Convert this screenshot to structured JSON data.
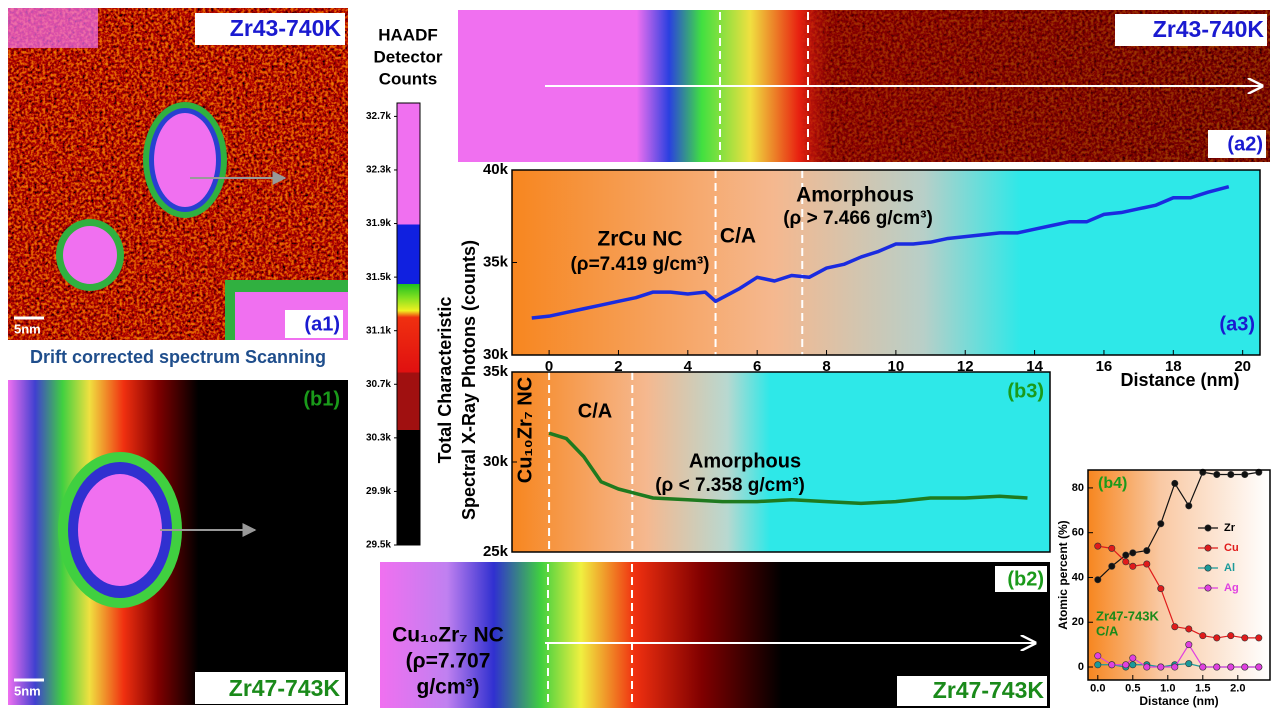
{
  "panels": {
    "a1": {
      "title": "Zr43-740K",
      "tag": "(a1)",
      "scale": "5nm"
    },
    "b1": {
      "title": "Zr47-743K",
      "tag": "(b1)",
      "scale": "5nm"
    },
    "a2": {
      "title": "Zr43-740K",
      "tag": "(a2)"
    },
    "b2": {
      "title": "Zr47-743K",
      "tag": "(b2)",
      "note": [
        "Cu₁₀Zr₇ NC",
        "(ρ=7.707",
        "g/cm³)"
      ]
    }
  },
  "caption": "Drift corrected spectrum Scanning",
  "chart_data": [
    {
      "type": "colorbar",
      "title": [
        "HAADF",
        "Detector",
        "Counts"
      ],
      "ylim": [
        29500,
        32800
      ],
      "yticks": [
        {
          "value": 29500,
          "label": "29.5k"
        },
        {
          "value": 29900,
          "label": "29.9k"
        },
        {
          "value": 30300,
          "label": "30.3k"
        },
        {
          "value": 30700,
          "label": "30.7k"
        },
        {
          "value": 31100,
          "label": "31.1k"
        },
        {
          "value": 31500,
          "label": "31.5k"
        },
        {
          "value": 31900,
          "label": "31.9k"
        },
        {
          "value": 32300,
          "label": "32.3k"
        },
        {
          "value": 32700,
          "label": "32.7k"
        }
      ]
    },
    {
      "type": "line",
      "tag": "(a3)",
      "xlabel": "Distance (nm)",
      "ylabel": [
        "Total Characteristic",
        "Spectral X-Ray Photons (counts)"
      ],
      "xlim": [
        -1.07,
        20.5
      ],
      "xticks": [
        0,
        2,
        4,
        6,
        8,
        10,
        12,
        14,
        16,
        18,
        20
      ],
      "ylim": [
        30000,
        40000
      ],
      "yticks": [
        {
          "value": 30000,
          "label": "30k"
        },
        {
          "value": 35000,
          "label": "35k"
        },
        {
          "value": 40000,
          "label": "40k"
        }
      ],
      "boundaries": [
        4.8,
        7.3
      ],
      "annotations": [
        "ZrCu NC",
        "(ρ=7.419 g/cm³)",
        "C/A",
        "Amorphous",
        "(ρ > 7.466 g/cm³)"
      ],
      "x": [
        -0.5,
        0,
        0.5,
        1,
        1.5,
        2,
        2.5,
        3,
        3.5,
        4,
        4.5,
        4.8,
        5.5,
        6,
        6.5,
        7,
        7.5,
        8,
        8.5,
        9,
        9.5,
        10,
        10.5,
        11,
        11.5,
        12,
        12.5,
        13,
        13.5,
        14,
        14.5,
        15,
        15.5,
        16,
        16.5,
        17,
        17.5,
        18,
        18.5,
        19,
        19.6
      ],
      "series": [
        {
          "color": "#1a2be0",
          "values": [
            32000,
            32100,
            32300,
            32500,
            32700,
            32900,
            33100,
            33400,
            33400,
            33300,
            33400,
            32900,
            33600,
            34200,
            34000,
            34300,
            34200,
            34700,
            34900,
            35300,
            35600,
            36000,
            36000,
            36100,
            36300,
            36400,
            36500,
            36600,
            36600,
            36800,
            37000,
            37200,
            37200,
            37600,
            37700,
            37900,
            38100,
            38500,
            38500,
            38800,
            39100
          ]
        }
      ]
    },
    {
      "type": "line",
      "tag": "(b3)",
      "xlim": [
        -1.07,
        14.45
      ],
      "ylim": [
        25000,
        35000
      ],
      "yticks": [
        {
          "value": 25000,
          "label": "25k"
        },
        {
          "value": 30000,
          "label": "30k"
        },
        {
          "value": 35000,
          "label": "35k"
        }
      ],
      "boundaries": [
        0,
        2.4
      ],
      "annotations": [
        "Cu₁₀Zr₇ NC",
        "C/A",
        "Amorphous",
        "(ρ < 7.358 g/cm³)"
      ],
      "x": [
        0,
        0.5,
        1,
        1.5,
        2,
        2.4,
        3,
        4,
        5,
        6,
        7,
        8,
        9,
        10,
        11,
        12,
        13,
        13.8
      ],
      "series": [
        {
          "color": "#1f7a1f",
          "values": [
            31600,
            31300,
            30300,
            28900,
            28500,
            28300,
            28000,
            27900,
            27800,
            27800,
            27900,
            27800,
            27700,
            27800,
            28000,
            28000,
            28100,
            28000
          ]
        }
      ]
    },
    {
      "type": "line",
      "markers": true,
      "tag": "(b4)",
      "xlabel": "Distance (nm)",
      "ylabel": [
        "Atomic percent (%)"
      ],
      "xlim": [
        -0.14,
        2.46
      ],
      "xticks": [
        {
          "value": 0,
          "label": "0.0"
        },
        {
          "value": 0.5,
          "label": "0.5"
        },
        {
          "value": 1,
          "label": "1.0"
        },
        {
          "value": 1.5,
          "label": "1.5"
        },
        {
          "value": 2,
          "label": "2.0"
        }
      ],
      "ylim": [
        -5.8,
        88
      ],
      "yticks": [
        0,
        20,
        40,
        60,
        80
      ],
      "legend": "right",
      "annotations": [
        "Zr47-743K",
        "C/A"
      ],
      "x": [
        0,
        0.2,
        0.4,
        0.5,
        0.7,
        0.9,
        1.1,
        1.3,
        1.5,
        1.7,
        1.9,
        2.1,
        2.3
      ],
      "series": [
        {
          "name": "Zr",
          "color": "#111111",
          "values": [
            39,
            45,
            50,
            51,
            52,
            64,
            82,
            72,
            87,
            86,
            86,
            86,
            87
          ]
        },
        {
          "name": "Cu",
          "color": "#e01b1b",
          "values": [
            54,
            53,
            47,
            45,
            46,
            35,
            18,
            17,
            14,
            13,
            14,
            13,
            13
          ]
        },
        {
          "name": "Al",
          "color": "#1a9a9a",
          "values": [
            1,
            1,
            0,
            1,
            1,
            0,
            1,
            1.5,
            0,
            0,
            0,
            0,
            0
          ]
        },
        {
          "name": "Ag",
          "color": "#e040e0",
          "values": [
            5,
            1,
            1,
            4,
            0,
            0,
            0,
            10,
            0,
            0,
            0,
            0,
            0
          ]
        }
      ]
    }
  ]
}
